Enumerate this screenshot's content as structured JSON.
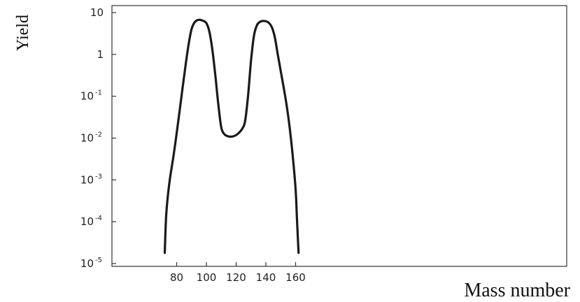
{
  "chart_data": {
    "type": "line",
    "title": "",
    "xlabel": "Mass number",
    "ylabel": "Yield",
    "y_scale": "log",
    "xlim": [
      68,
      176
    ],
    "ylim": [
      1e-05,
      10
    ],
    "x_ticks": [
      {
        "value": 80,
        "label": "80"
      },
      {
        "value": 100,
        "label": "100"
      },
      {
        "value": 120,
        "label": "120"
      },
      {
        "value": 140,
        "label": "140"
      },
      {
        "value": 160,
        "label": "160"
      }
    ],
    "y_ticks": [
      {
        "value": 10,
        "base": "10",
        "exp": ""
      },
      {
        "value": 1,
        "base": "1",
        "exp": ""
      },
      {
        "value": 0.1,
        "base": "10",
        "exp": "-1"
      },
      {
        "value": 0.01,
        "base": "10",
        "exp": "-2"
      },
      {
        "value": 0.001,
        "base": "10",
        "exp": "-3"
      },
      {
        "value": 0.0001,
        "base": "10",
        "exp": "-4"
      },
      {
        "value": 1e-05,
        "base": "10",
        "exp": "-5"
      }
    ],
    "grid": false,
    "legend": "none",
    "series": [
      {
        "color": "#1a1a1a",
        "points": [
          [
            72,
            1.8e-05
          ],
          [
            73,
            0.00015
          ],
          [
            75,
            0.0008
          ],
          [
            78,
            0.004
          ],
          [
            80,
            0.013
          ],
          [
            82,
            0.045
          ],
          [
            84,
            0.16
          ],
          [
            86,
            0.55
          ],
          [
            88,
            1.7
          ],
          [
            90,
            4.0
          ],
          [
            92,
            5.8
          ],
          [
            94,
            6.6
          ],
          [
            96,
            6.7
          ],
          [
            98,
            6.3
          ],
          [
            100,
            5.6
          ],
          [
            102,
            3.5
          ],
          [
            104,
            1.3
          ],
          [
            106,
            0.32
          ],
          [
            108,
            0.065
          ],
          [
            110,
            0.018
          ],
          [
            112,
            0.0125
          ],
          [
            114,
            0.0112
          ],
          [
            116,
            0.0108
          ],
          [
            118,
            0.011
          ],
          [
            120,
            0.0118
          ],
          [
            122,
            0.0135
          ],
          [
            124,
            0.0165
          ],
          [
            126,
            0.025
          ],
          [
            128,
            0.1
          ],
          [
            130,
            0.7
          ],
          [
            132,
            2.8
          ],
          [
            134,
            5.0
          ],
          [
            136,
            6.0
          ],
          [
            138,
            6.3
          ],
          [
            140,
            6.2
          ],
          [
            142,
            5.7
          ],
          [
            144,
            4.5
          ],
          [
            146,
            2.6
          ],
          [
            148,
            1.0
          ],
          [
            150,
            0.4
          ],
          [
            152,
            0.16
          ],
          [
            154,
            0.06
          ],
          [
            156,
            0.018
          ],
          [
            158,
            0.004
          ],
          [
            160,
            0.0006
          ],
          [
            161,
            0.0001
          ],
          [
            162,
            1.8e-05
          ]
        ]
      }
    ]
  }
}
